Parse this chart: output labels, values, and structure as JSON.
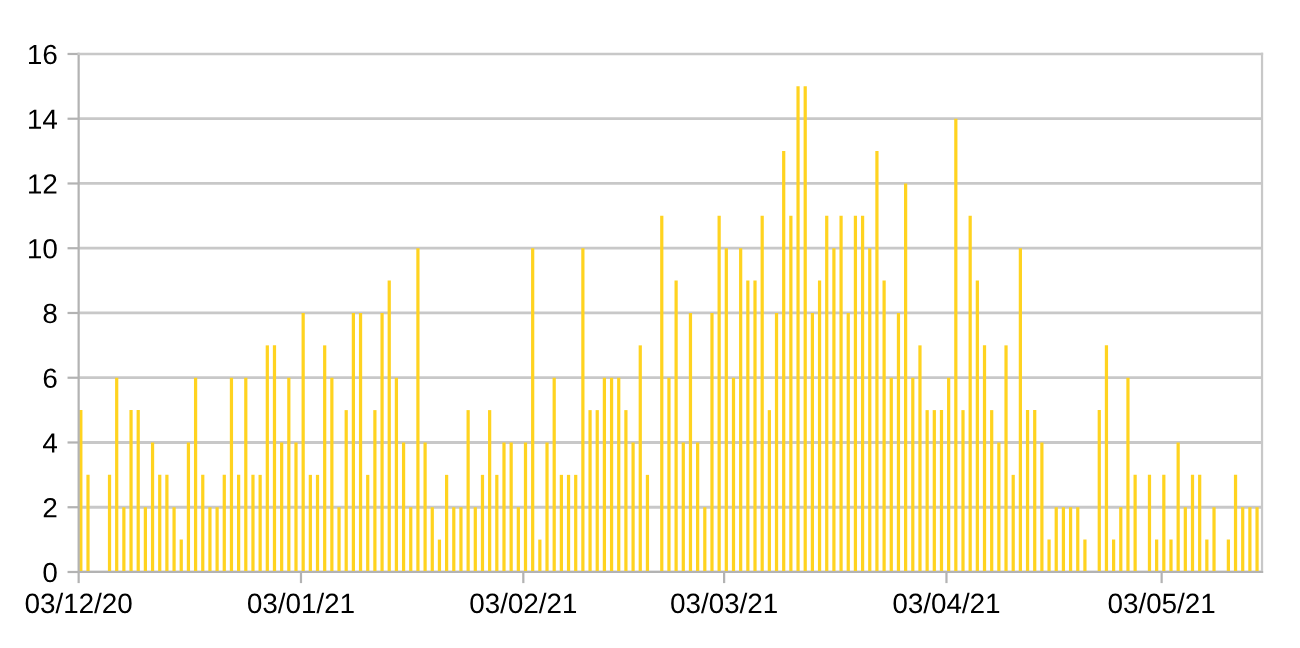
{
  "chart_data": {
    "type": "bar",
    "color": "#ffd320",
    "grid": "y",
    "categories": [
      "03/12/20",
      null,
      null,
      null,
      null,
      null,
      null,
      null,
      null,
      null,
      null,
      null,
      null,
      null,
      null,
      null,
      null,
      null,
      null,
      null,
      null,
      null,
      null,
      null,
      null,
      null,
      null,
      null,
      null,
      null,
      null,
      "03/01/21",
      null,
      null,
      null,
      null,
      null,
      null,
      null,
      null,
      null,
      null,
      null,
      null,
      null,
      null,
      null,
      null,
      null,
      null,
      null,
      null,
      null,
      null,
      null,
      null,
      null,
      null,
      null,
      null,
      null,
      null,
      "03/02/21",
      null,
      null,
      null,
      null,
      null,
      null,
      null,
      null,
      null,
      null,
      null,
      null,
      null,
      null,
      null,
      null,
      null,
      null,
      null,
      null,
      null,
      null,
      null,
      null,
      null,
      null,
      null,
      "03/03/21",
      null,
      null,
      null,
      null,
      null,
      null,
      null,
      null,
      null,
      null,
      null,
      null,
      null,
      null,
      null,
      null,
      null,
      null,
      null,
      null,
      null,
      null,
      null,
      null,
      null,
      null,
      null,
      null,
      null,
      null,
      "03/04/21",
      null,
      null,
      null,
      null,
      null,
      null,
      null,
      null,
      null,
      null,
      null,
      null,
      null,
      null,
      null,
      null,
      null,
      null,
      null,
      null,
      null,
      null,
      null,
      null,
      null,
      null,
      null,
      null,
      null,
      "03/05/21",
      null,
      null,
      null,
      null,
      null,
      null,
      null,
      null,
      null,
      null,
      null,
      null,
      null
    ],
    "ylim": [
      0,
      16
    ],
    "yticks": [
      0,
      2,
      4,
      6,
      8,
      10,
      12,
      14,
      16
    ],
    "values": [
      5,
      3,
      0,
      0,
      3,
      6,
      2,
      5,
      5,
      2,
      4,
      3,
      3,
      2,
      1,
      4,
      6,
      3,
      2,
      2,
      3,
      6,
      3,
      6,
      3,
      3,
      7,
      7,
      4,
      6,
      4,
      8,
      3,
      3,
      7,
      6,
      2,
      5,
      8,
      8,
      3,
      5,
      8,
      9,
      6,
      4,
      2,
      10,
      4,
      2,
      1,
      3,
      2,
      2,
      5,
      2,
      3,
      5,
      3,
      4,
      4,
      2,
      4,
      10,
      1,
      4,
      6,
      3,
      3,
      3,
      10,
      5,
      5,
      6,
      6,
      6,
      5,
      4,
      7,
      3,
      0,
      11,
      6,
      9,
      4,
      8,
      4,
      2,
      8,
      11,
      10,
      6,
      10,
      9,
      9,
      11,
      5,
      8,
      13,
      11,
      15,
      15,
      8,
      9,
      11,
      10,
      11,
      8,
      11,
      11,
      10,
      13,
      9,
      6,
      8,
      12,
      6,
      7,
      5,
      5,
      5,
      6,
      14,
      5,
      11,
      9,
      7,
      5,
      4,
      7,
      3,
      10,
      5,
      5,
      4,
      1,
      2,
      2,
      2,
      2,
      1,
      0,
      5,
      7,
      1,
      2,
      6,
      3,
      0,
      3,
      1,
      3,
      1,
      4,
      2,
      3,
      3,
      1,
      2,
      0,
      1,
      3,
      2,
      2,
      2
    ]
  }
}
